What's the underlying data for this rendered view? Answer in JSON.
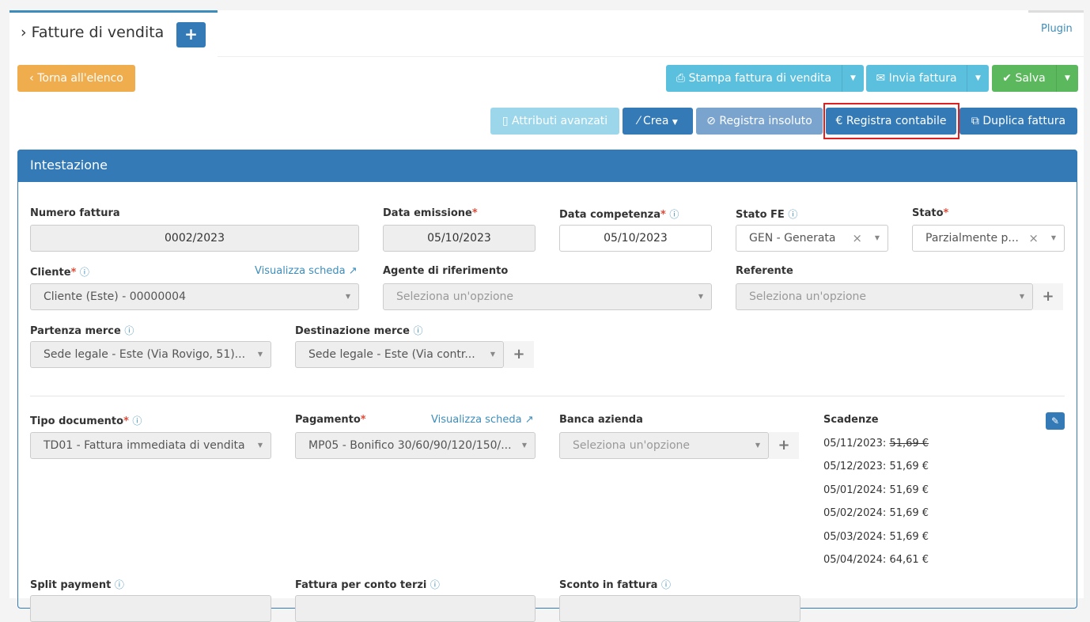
{
  "header": {
    "title": "Fatture di vendita",
    "add_icon": "plus-icon",
    "plugin": "Plugin"
  },
  "toolbar": {
    "back": "Torna all'elenco",
    "print": "Stampa fattura di vendita",
    "send": "Invia fattura",
    "save": "Salva",
    "advanced": "Attributi avanzati",
    "create": "Crea",
    "unpaid": "Registra insoluto",
    "accounting": "Registra contabile",
    "duplicate": "Duplica fattura"
  },
  "panel": {
    "title": "Intestazione"
  },
  "fields": {
    "numero": {
      "label": "Numero fattura",
      "value": "0002/2023"
    },
    "emissione": {
      "label": "Data emissione",
      "value": "05/10/2023"
    },
    "competenza": {
      "label": "Data competenza",
      "value": "05/10/2023"
    },
    "stato_fe": {
      "label": "Stato FE",
      "value": "GEN - Generata"
    },
    "stato": {
      "label": "Stato",
      "value": "Parzialmente p..."
    },
    "cliente": {
      "label": "Cliente",
      "value": "Cliente (Este) - 00000004",
      "link": "Visualizza scheda"
    },
    "agente": {
      "label": "Agente di riferimento",
      "placeholder": "Seleziona un'opzione"
    },
    "referente": {
      "label": "Referente",
      "placeholder": "Seleziona un'opzione"
    },
    "partenza": {
      "label": "Partenza merce",
      "value": "Sede legale - Este (Via Rovigo, 51)..."
    },
    "destinazione": {
      "label": "Destinazione merce",
      "value": "Sede legale - Este (Via contr..."
    },
    "tipo": {
      "label": "Tipo documento",
      "value": "TD01 - Fattura immediata di vendita"
    },
    "pagamento": {
      "label": "Pagamento",
      "value": "MP05 - Bonifico 30/60/90/120/150/...",
      "link": "Visualizza scheda"
    },
    "banca": {
      "label": "Banca azienda",
      "placeholder": "Seleziona un'opzione"
    },
    "split": {
      "label": "Split payment"
    },
    "conto_terzi": {
      "label": "Fattura per conto terzi"
    },
    "sconto": {
      "label": "Sconto in fattura"
    }
  },
  "scadenze": {
    "label": "Scadenze",
    "items": [
      {
        "date": "05/11/2023:",
        "amount": "51,69 €",
        "struck": true
      },
      {
        "date": "05/12/2023:",
        "amount": "51,69 €"
      },
      {
        "date": "05/01/2024:",
        "amount": "51,69 €"
      },
      {
        "date": "05/02/2024:",
        "amount": "51,69 €"
      },
      {
        "date": "05/03/2024:",
        "amount": "51,69 €"
      },
      {
        "date": "05/04/2024:",
        "amount": "64,61 €"
      }
    ]
  }
}
